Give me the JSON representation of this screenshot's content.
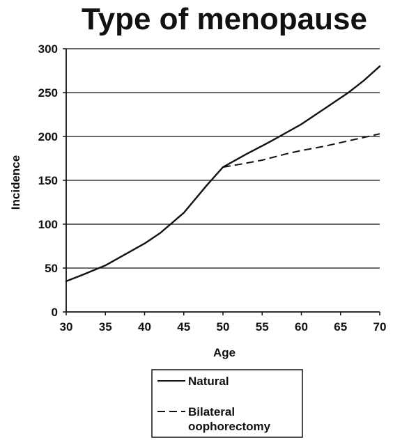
{
  "chart_data": {
    "type": "line",
    "title": "Type of menopause",
    "xlabel": "Age",
    "ylabel": "Incidence",
    "xlim": [
      30,
      70
    ],
    "ylim": [
      0,
      300
    ],
    "x_ticks": [
      30,
      35,
      40,
      45,
      50,
      55,
      60,
      65,
      70
    ],
    "y_ticks": [
      0,
      50,
      100,
      150,
      200,
      250,
      300
    ],
    "grid": "horizontal",
    "legend": {
      "placement": "bottom-center",
      "entries": [
        "Natural",
        "Bilateral oophorectomy"
      ],
      "entry_lines": [
        [
          "Natural"
        ],
        [
          "Bilateral",
          "oophorectomy"
        ]
      ]
    },
    "series": [
      {
        "name": "Natural",
        "style": "solid",
        "x": [
          30,
          32,
          35,
          38,
          40,
          42,
          45,
          48,
          50,
          53,
          56,
          58,
          60,
          63,
          66,
          68,
          70
        ],
        "y": [
          35,
          42,
          53,
          68,
          78,
          90,
          113,
          145,
          165,
          180,
          194,
          204,
          214,
          232,
          250,
          264,
          280
        ]
      },
      {
        "name": "Bilateral oophorectomy",
        "style": "dashed",
        "x": [
          50,
          52,
          55,
          58,
          60,
          63,
          66,
          68,
          70
        ],
        "y": [
          165,
          168,
          173,
          180,
          184,
          189,
          195,
          199,
          203
        ]
      }
    ],
    "colors": {
      "line": "#111111",
      "grid": "#111111",
      "background": "#ffffff"
    }
  }
}
